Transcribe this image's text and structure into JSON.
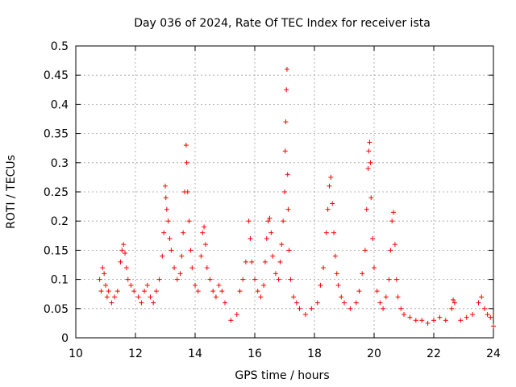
{
  "chart_data": {
    "type": "scatter",
    "title": "Day 036 of 2024, Rate Of TEC Index for receiver ista",
    "xlabel": "GPS time / hours",
    "ylabel": "ROTI / TECUs",
    "xlim": [
      10,
      24
    ],
    "ylim": [
      0,
      0.5
    ],
    "x_ticks": [
      10,
      12,
      14,
      16,
      18,
      20,
      22,
      24
    ],
    "x_tick_labels": [
      "10",
      "12",
      "14",
      "16",
      "18",
      "20",
      "22",
      "24"
    ],
    "y_ticks": [
      0,
      0.05,
      0.1,
      0.15,
      0.2,
      0.25,
      0.3,
      0.35,
      0.4,
      0.45,
      0.5
    ],
    "y_tick_labels": [
      "0",
      "0.05",
      "0.1",
      "0.15",
      "0.2",
      "0.25",
      "0.3",
      "0.35",
      "0.4",
      "0.45",
      "0.5"
    ],
    "grid": true,
    "marker": "+",
    "marker_color": "#ff0000",
    "series": [
      {
        "name": "ROTI",
        "points": [
          [
            10.8,
            0.1
          ],
          [
            10.85,
            0.08
          ],
          [
            10.9,
            0.12
          ],
          [
            10.95,
            0.11
          ],
          [
            11.0,
            0.09
          ],
          [
            11.05,
            0.07
          ],
          [
            11.1,
            0.08
          ],
          [
            11.2,
            0.06
          ],
          [
            11.3,
            0.07
          ],
          [
            11.4,
            0.08
          ],
          [
            11.5,
            0.13
          ],
          [
            11.55,
            0.15
          ],
          [
            11.6,
            0.16
          ],
          [
            11.65,
            0.145
          ],
          [
            11.7,
            0.12
          ],
          [
            11.75,
            0.1
          ],
          [
            11.85,
            0.09
          ],
          [
            11.95,
            0.08
          ],
          [
            12.1,
            0.07
          ],
          [
            12.2,
            0.06
          ],
          [
            12.3,
            0.08
          ],
          [
            12.4,
            0.09
          ],
          [
            12.5,
            0.07
          ],
          [
            12.6,
            0.06
          ],
          [
            12.7,
            0.08
          ],
          [
            12.8,
            0.1
          ],
          [
            12.9,
            0.14
          ],
          [
            12.95,
            0.18
          ],
          [
            13.0,
            0.26
          ],
          [
            13.02,
            0.24
          ],
          [
            13.05,
            0.22
          ],
          [
            13.1,
            0.2
          ],
          [
            13.15,
            0.17
          ],
          [
            13.2,
            0.15
          ],
          [
            13.3,
            0.12
          ],
          [
            13.4,
            0.1
          ],
          [
            13.5,
            0.11
          ],
          [
            13.55,
            0.14
          ],
          [
            13.6,
            0.18
          ],
          [
            13.65,
            0.25
          ],
          [
            13.7,
            0.33
          ],
          [
            13.72,
            0.3
          ],
          [
            13.75,
            0.25
          ],
          [
            13.8,
            0.2
          ],
          [
            13.85,
            0.15
          ],
          [
            13.9,
            0.12
          ],
          [
            14.0,
            0.09
          ],
          [
            14.1,
            0.08
          ],
          [
            14.2,
            0.14
          ],
          [
            14.25,
            0.18
          ],
          [
            14.3,
            0.19
          ],
          [
            14.35,
            0.16
          ],
          [
            14.4,
            0.12
          ],
          [
            14.5,
            0.1
          ],
          [
            14.6,
            0.08
          ],
          [
            14.7,
            0.07
          ],
          [
            14.8,
            0.09
          ],
          [
            14.9,
            0.08
          ],
          [
            15.0,
            0.06
          ],
          [
            15.2,
            0.03
          ],
          [
            15.4,
            0.04
          ],
          [
            15.5,
            0.08
          ],
          [
            15.6,
            0.1
          ],
          [
            15.7,
            0.13
          ],
          [
            15.8,
            0.2
          ],
          [
            15.85,
            0.17
          ],
          [
            15.9,
            0.13
          ],
          [
            16.0,
            0.1
          ],
          [
            16.1,
            0.08
          ],
          [
            16.2,
            0.07
          ],
          [
            16.3,
            0.09
          ],
          [
            16.35,
            0.13
          ],
          [
            16.4,
            0.17
          ],
          [
            16.45,
            0.2
          ],
          [
            16.5,
            0.205
          ],
          [
            16.55,
            0.18
          ],
          [
            16.6,
            0.14
          ],
          [
            16.7,
            0.11
          ],
          [
            16.8,
            0.1
          ],
          [
            16.85,
            0.13
          ],
          [
            16.9,
            0.16
          ],
          [
            16.95,
            0.2
          ],
          [
            17.0,
            0.25
          ],
          [
            17.02,
            0.32
          ],
          [
            17.04,
            0.37
          ],
          [
            17.06,
            0.425
          ],
          [
            17.08,
            0.46
          ],
          [
            17.1,
            0.28
          ],
          [
            17.12,
            0.22
          ],
          [
            17.15,
            0.15
          ],
          [
            17.2,
            0.1
          ],
          [
            17.3,
            0.07
          ],
          [
            17.4,
            0.06
          ],
          [
            17.5,
            0.05
          ],
          [
            17.7,
            0.04
          ],
          [
            17.9,
            0.05
          ],
          [
            18.1,
            0.06
          ],
          [
            18.2,
            0.09
          ],
          [
            18.3,
            0.12
          ],
          [
            18.4,
            0.18
          ],
          [
            18.45,
            0.22
          ],
          [
            18.5,
            0.26
          ],
          [
            18.55,
            0.275
          ],
          [
            18.6,
            0.23
          ],
          [
            18.65,
            0.18
          ],
          [
            18.7,
            0.14
          ],
          [
            18.75,
            0.11
          ],
          [
            18.8,
            0.09
          ],
          [
            18.9,
            0.07
          ],
          [
            19.0,
            0.06
          ],
          [
            19.2,
            0.05
          ],
          [
            19.4,
            0.06
          ],
          [
            19.5,
            0.08
          ],
          [
            19.6,
            0.11
          ],
          [
            19.7,
            0.15
          ],
          [
            19.75,
            0.22
          ],
          [
            19.8,
            0.29
          ],
          [
            19.82,
            0.32
          ],
          [
            19.85,
            0.335
          ],
          [
            19.88,
            0.3
          ],
          [
            19.9,
            0.24
          ],
          [
            19.95,
            0.17
          ],
          [
            20.0,
            0.12
          ],
          [
            20.1,
            0.08
          ],
          [
            20.2,
            0.06
          ],
          [
            20.3,
            0.05
          ],
          [
            20.4,
            0.07
          ],
          [
            20.5,
            0.1
          ],
          [
            20.55,
            0.15
          ],
          [
            20.6,
            0.2
          ],
          [
            20.65,
            0.215
          ],
          [
            20.7,
            0.16
          ],
          [
            20.75,
            0.1
          ],
          [
            20.8,
            0.07
          ],
          [
            20.9,
            0.05
          ],
          [
            21.0,
            0.04
          ],
          [
            21.2,
            0.035
          ],
          [
            21.4,
            0.03
          ],
          [
            21.6,
            0.03
          ],
          [
            21.8,
            0.025
          ],
          [
            22.0,
            0.03
          ],
          [
            22.2,
            0.035
          ],
          [
            22.4,
            0.03
          ],
          [
            22.6,
            0.05
          ],
          [
            22.65,
            0.065
          ],
          [
            22.7,
            0.06
          ],
          [
            22.9,
            0.03
          ],
          [
            23.1,
            0.035
          ],
          [
            23.3,
            0.04
          ],
          [
            23.5,
            0.06
          ],
          [
            23.6,
            0.07
          ],
          [
            23.7,
            0.05
          ],
          [
            23.8,
            0.04
          ],
          [
            23.9,
            0.035
          ],
          [
            24.0,
            0.02
          ]
        ]
      }
    ]
  }
}
